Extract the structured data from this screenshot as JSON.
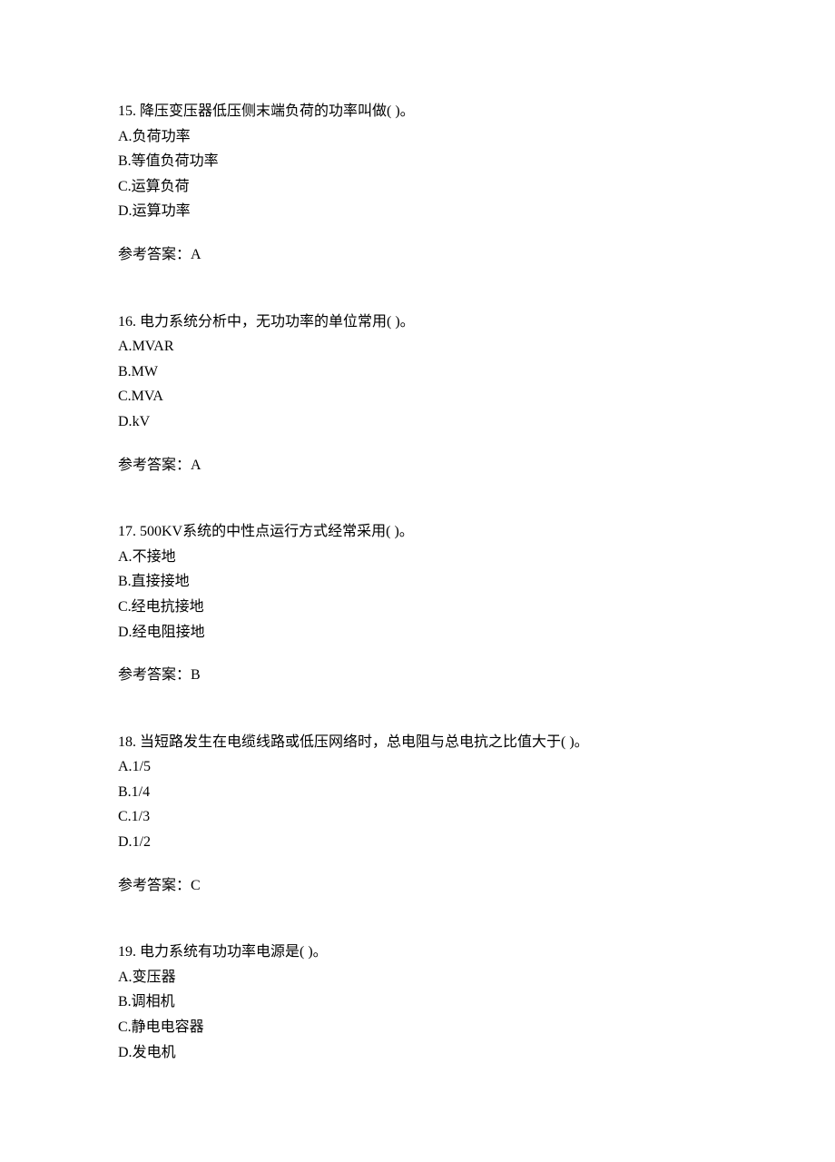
{
  "questions": [
    {
      "number": "15.",
      "stem": "降压变压器低压侧末端负荷的功率叫做(  )。",
      "options": [
        {
          "letter": "A.",
          "text": "负荷功率"
        },
        {
          "letter": "B.",
          "text": "等值负荷功率"
        },
        {
          "letter": "C.",
          "text": "运算负荷"
        },
        {
          "letter": "D.",
          "text": "运算功率"
        }
      ],
      "answer_label": "参考答案：",
      "answer_value": "A"
    },
    {
      "number": "16.",
      "stem": "电力系统分析中，无功功率的单位常用(  )。",
      "options": [
        {
          "letter": "A.",
          "text": "MVAR"
        },
        {
          "letter": "B.",
          "text": "MW"
        },
        {
          "letter": "C.",
          "text": "MVA"
        },
        {
          "letter": "D.",
          "text": "kV"
        }
      ],
      "answer_label": "参考答案：",
      "answer_value": "A"
    },
    {
      "number": "17.",
      "stem": "500KV系统的中性点运行方式经常采用(  )。",
      "options": [
        {
          "letter": "A.",
          "text": "不接地"
        },
        {
          "letter": "B.",
          "text": "直接接地"
        },
        {
          "letter": "C.",
          "text": "经电抗接地"
        },
        {
          "letter": "D.",
          "text": "经电阻接地"
        }
      ],
      "answer_label": "参考答案：",
      "answer_value": "B"
    },
    {
      "number": "18.",
      "stem": "当短路发生在电缆线路或低压网络时，总电阻与总电抗之比值大于(  )。",
      "options": [
        {
          "letter": "A.",
          "text": "1/5"
        },
        {
          "letter": "B.",
          "text": "1/4"
        },
        {
          "letter": "C.",
          "text": "1/3"
        },
        {
          "letter": "D.",
          "text": "1/2"
        }
      ],
      "answer_label": "参考答案：",
      "answer_value": "C"
    },
    {
      "number": "19.",
      "stem": "电力系统有功功率电源是(  )。",
      "options": [
        {
          "letter": "A.",
          "text": "变压器"
        },
        {
          "letter": "B.",
          "text": "调相机"
        },
        {
          "letter": "C.",
          "text": "静电电容器"
        },
        {
          "letter": "D.",
          "text": "发电机"
        }
      ],
      "answer_label": "",
      "answer_value": ""
    }
  ]
}
